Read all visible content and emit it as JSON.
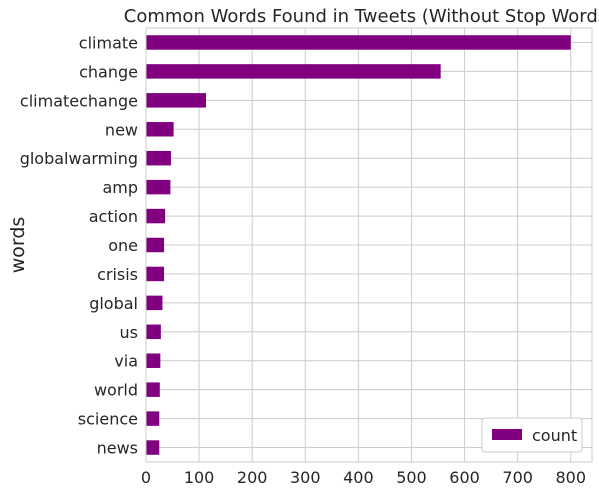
{
  "chart_data": {
    "type": "bar",
    "orientation": "horizontal",
    "title": "Common Words Found in Tweets (Without Stop Words)",
    "xlabel": "",
    "ylabel": "words",
    "categories": [
      "climate",
      "change",
      "climatechange",
      "new",
      "globalwarming",
      "amp",
      "action",
      "one",
      "crisis",
      "global",
      "us",
      "via",
      "world",
      "science",
      "news"
    ],
    "series": [
      {
        "name": "count",
        "values": [
          800,
          555,
          113,
          52,
          47,
          46,
          36,
          34,
          34,
          31,
          28,
          27,
          26,
          25,
          25
        ]
      }
    ],
    "xlim": [
      0,
      840
    ],
    "xticks": [
      0,
      100,
      200,
      300,
      400,
      500,
      600,
      700,
      800
    ],
    "grid": true,
    "legend_position": "bottom-right",
    "bar_color": "#800080",
    "grid_color": "#cccccc"
  }
}
